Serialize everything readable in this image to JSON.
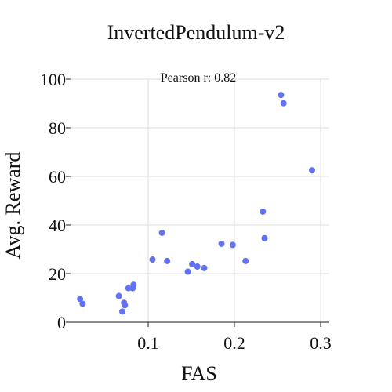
{
  "chart_data": {
    "type": "scatter",
    "title": "InvertedPendulum-v2",
    "xlabel": "FAS",
    "ylabel": "Avg. Reward",
    "annotation": "Pearson r: 0.82",
    "xlim": [
      0.01,
      0.31
    ],
    "ylim": [
      0,
      100
    ],
    "xticks": [
      0.1,
      0.2,
      0.3
    ],
    "xtick_labels": [
      "0.1",
      "0.2",
      "0.3"
    ],
    "yticks": [
      0,
      20,
      40,
      60,
      80,
      100
    ],
    "ytick_labels": [
      "0",
      "20",
      "40",
      "60",
      "80",
      "100"
    ],
    "grid": true,
    "marker_color": "#6272f0",
    "points": [
      {
        "x": 0.021,
        "y": 9.6
      },
      {
        "x": 0.024,
        "y": 7.6
      },
      {
        "x": 0.066,
        "y": 10.8
      },
      {
        "x": 0.07,
        "y": 4.4
      },
      {
        "x": 0.072,
        "y": 8.0
      },
      {
        "x": 0.073,
        "y": 7.0
      },
      {
        "x": 0.077,
        "y": 14.0
      },
      {
        "x": 0.082,
        "y": 14.0
      },
      {
        "x": 0.083,
        "y": 15.4
      },
      {
        "x": 0.105,
        "y": 25.8
      },
      {
        "x": 0.116,
        "y": 36.8
      },
      {
        "x": 0.122,
        "y": 25.2
      },
      {
        "x": 0.146,
        "y": 20.8
      },
      {
        "x": 0.151,
        "y": 23.9
      },
      {
        "x": 0.157,
        "y": 22.9
      },
      {
        "x": 0.165,
        "y": 22.3
      },
      {
        "x": 0.185,
        "y": 32.3
      },
      {
        "x": 0.198,
        "y": 31.8
      },
      {
        "x": 0.213,
        "y": 25.2
      },
      {
        "x": 0.233,
        "y": 45.5
      },
      {
        "x": 0.235,
        "y": 34.6
      },
      {
        "x": 0.254,
        "y": 93.5
      },
      {
        "x": 0.257,
        "y": 90.1
      },
      {
        "x": 0.29,
        "y": 62.5
      }
    ]
  }
}
